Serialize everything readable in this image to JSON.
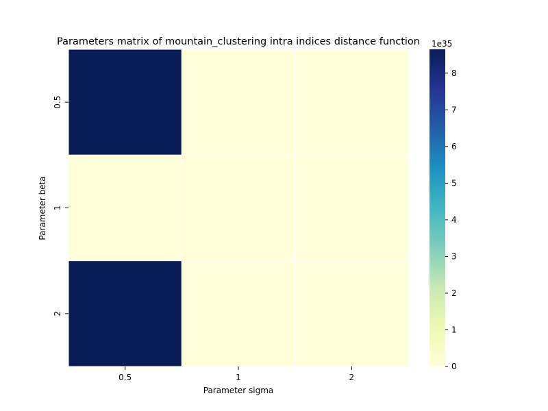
{
  "chart_data": {
    "type": "heatmap",
    "title": "Parameters matrix of mountain_clustering intra indices distance function",
    "xlabel": "Parameter sigma",
    "ylabel": "Parameter beta",
    "x_categories": [
      "0.5",
      "1",
      "2"
    ],
    "y_categories": [
      "0.5",
      "1",
      "2"
    ],
    "values": [
      [
        8.65e+35,
        0.0,
        0.0
      ],
      [
        0.0,
        0.0,
        0.0
      ],
      [
        8.65e+35,
        0.0,
        0.0
      ]
    ],
    "colormap": "YlGnBu",
    "colorbar": {
      "min": 0,
      "max": 8.65e+35,
      "ticks": [
        0,
        1,
        2,
        3,
        4,
        5,
        6,
        7,
        8
      ],
      "tick_labels": [
        "0",
        "1",
        "2",
        "3",
        "4",
        "5",
        "6",
        "7",
        "8"
      ],
      "offset_label": "1e35"
    },
    "grid": false
  }
}
